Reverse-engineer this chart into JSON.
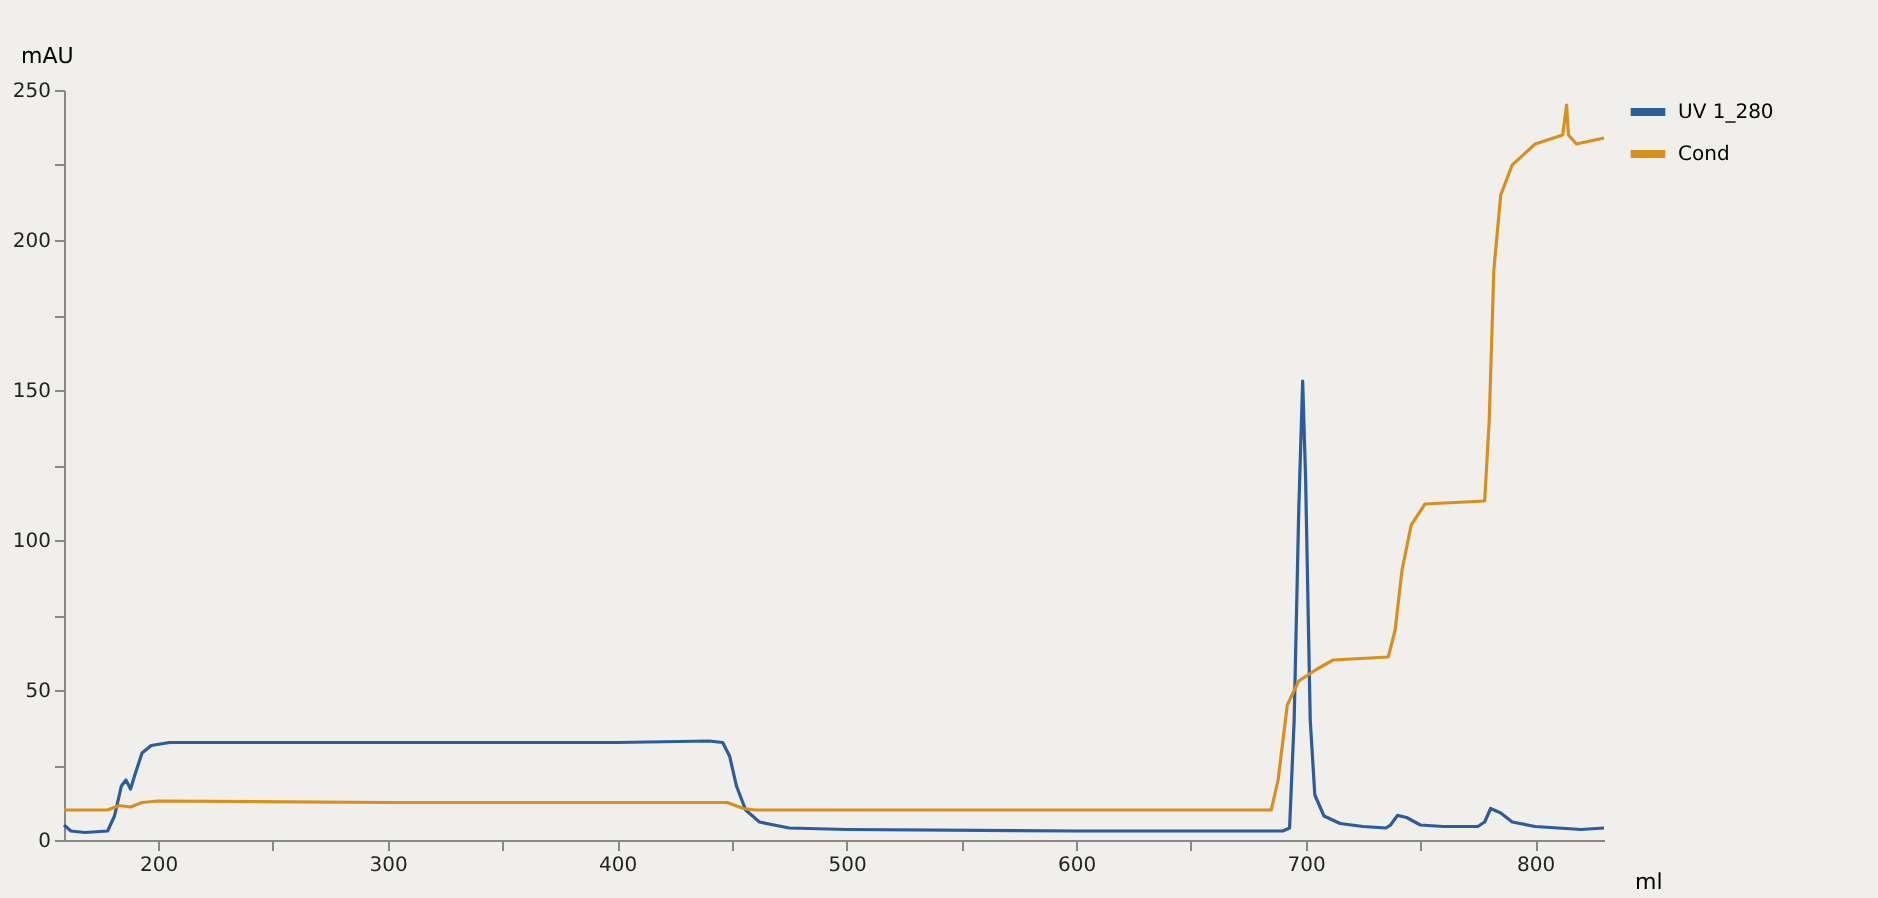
{
  "chart_data": {
    "type": "line",
    "xlabel": "ml",
    "ylabel": "mAU",
    "xlim": [
      159,
      830
    ],
    "ylim": [
      0,
      250
    ],
    "xticks": [
      200,
      {
        "value": 250,
        "label": null
      },
      300,
      {
        "value": 350,
        "label": null
      },
      400,
      {
        "value": 450,
        "label": null
      },
      500,
      {
        "value": 550,
        "label": null
      },
      600,
      {
        "value": 650,
        "label": null
      },
      700,
      {
        "value": 750,
        "label": null
      },
      800
    ],
    "yticks": [
      0,
      {
        "value": 25,
        "label": null
      },
      50,
      {
        "value": 75,
        "label": null
      },
      100,
      {
        "value": 125,
        "label": null
      },
      150,
      {
        "value": 175,
        "label": null
      },
      200,
      {
        "value": 225,
        "label": null
      },
      250
    ],
    "grid": false,
    "legend": "top right",
    "marker": "none",
    "line_style": "solid",
    "series": [
      {
        "name": "UV 1_280",
        "color": "#2b5c9c",
        "x": [
          159,
          162,
          168,
          178,
          181,
          184,
          186,
          188,
          190,
          193,
          197,
          205,
          300,
          400,
          440,
          446,
          449,
          452,
          456,
          462,
          475,
          500,
          600,
          690,
          693,
          695,
          697,
          698.7,
          700,
          702,
          704,
          708,
          715,
          725,
          735,
          737,
          740,
          744,
          750,
          760,
          775,
          778,
          780.6,
          785,
          790,
          800,
          820,
          830
        ],
        "values": [
          5,
          3,
          2.5,
          3,
          8,
          18,
          20,
          17,
          22,
          29,
          31.5,
          32.5,
          32.5,
          32.5,
          33,
          32.5,
          28,
          18,
          10,
          6,
          4,
          3.5,
          3,
          3,
          4,
          40,
          110,
          153,
          120,
          40,
          15,
          8,
          5.5,
          4.5,
          4,
          5,
          8.2,
          7.5,
          5,
          4.5,
          4.5,
          6,
          10.5,
          9,
          6,
          4.5,
          3.5,
          4
        ]
      },
      {
        "name": "Cond",
        "color": "#d8901c",
        "x": [
          159,
          178,
          183,
          188,
          193,
          200,
          300,
          448,
          455,
          460,
          600,
          685,
          688,
          692,
          697,
          705,
          712,
          736,
          739,
          742,
          746,
          752,
          778,
          780,
          782,
          785,
          790,
          800,
          812,
          813.7,
          814.5,
          818,
          830
        ],
        "values": [
          10,
          10,
          11.5,
          11,
          12.5,
          13,
          12.5,
          12.5,
          10.5,
          10,
          10,
          10,
          20,
          45,
          53,
          57,
          60,
          61,
          70,
          90,
          105,
          112,
          113,
          140,
          190,
          215,
          225,
          232,
          235,
          245,
          235,
          232,
          234
        ]
      }
    ]
  }
}
